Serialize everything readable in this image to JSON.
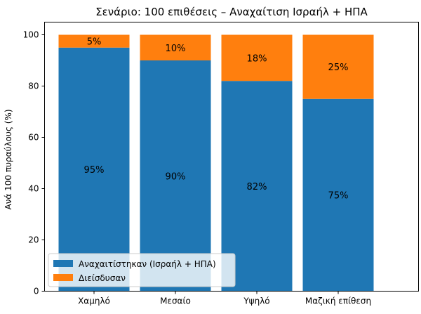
{
  "chart_data": {
    "type": "bar",
    "stacked": true,
    "title": "Σενάριο: 100 επιθέσεις – Αναχαίτιση Ισραήλ + ΗΠΑ",
    "xlabel": "",
    "ylabel": "Ανά 100 πυραύλους (%)",
    "ylim": [
      0,
      100
    ],
    "yticks": [
      0,
      20,
      40,
      60,
      80,
      100
    ],
    "categories": [
      "Χαμηλό",
      "Μεσαίο",
      "Υψηλό",
      "Μαζική επίθεση"
    ],
    "series": [
      {
        "name": "Αναχαιτίστηκαν (Ισραήλ + ΗΠΑ)",
        "color": "#1f77b4",
        "values": [
          95,
          90,
          82,
          75
        ],
        "labels": [
          "95%",
          "90%",
          "82%",
          "75%"
        ]
      },
      {
        "name": "Διείσδυσαν",
        "color": "#ff7f0e",
        "values": [
          5,
          10,
          18,
          25
        ],
        "labels": [
          "5%",
          "10%",
          "18%",
          "25%"
        ]
      }
    ],
    "legend_position": "lower-left"
  }
}
